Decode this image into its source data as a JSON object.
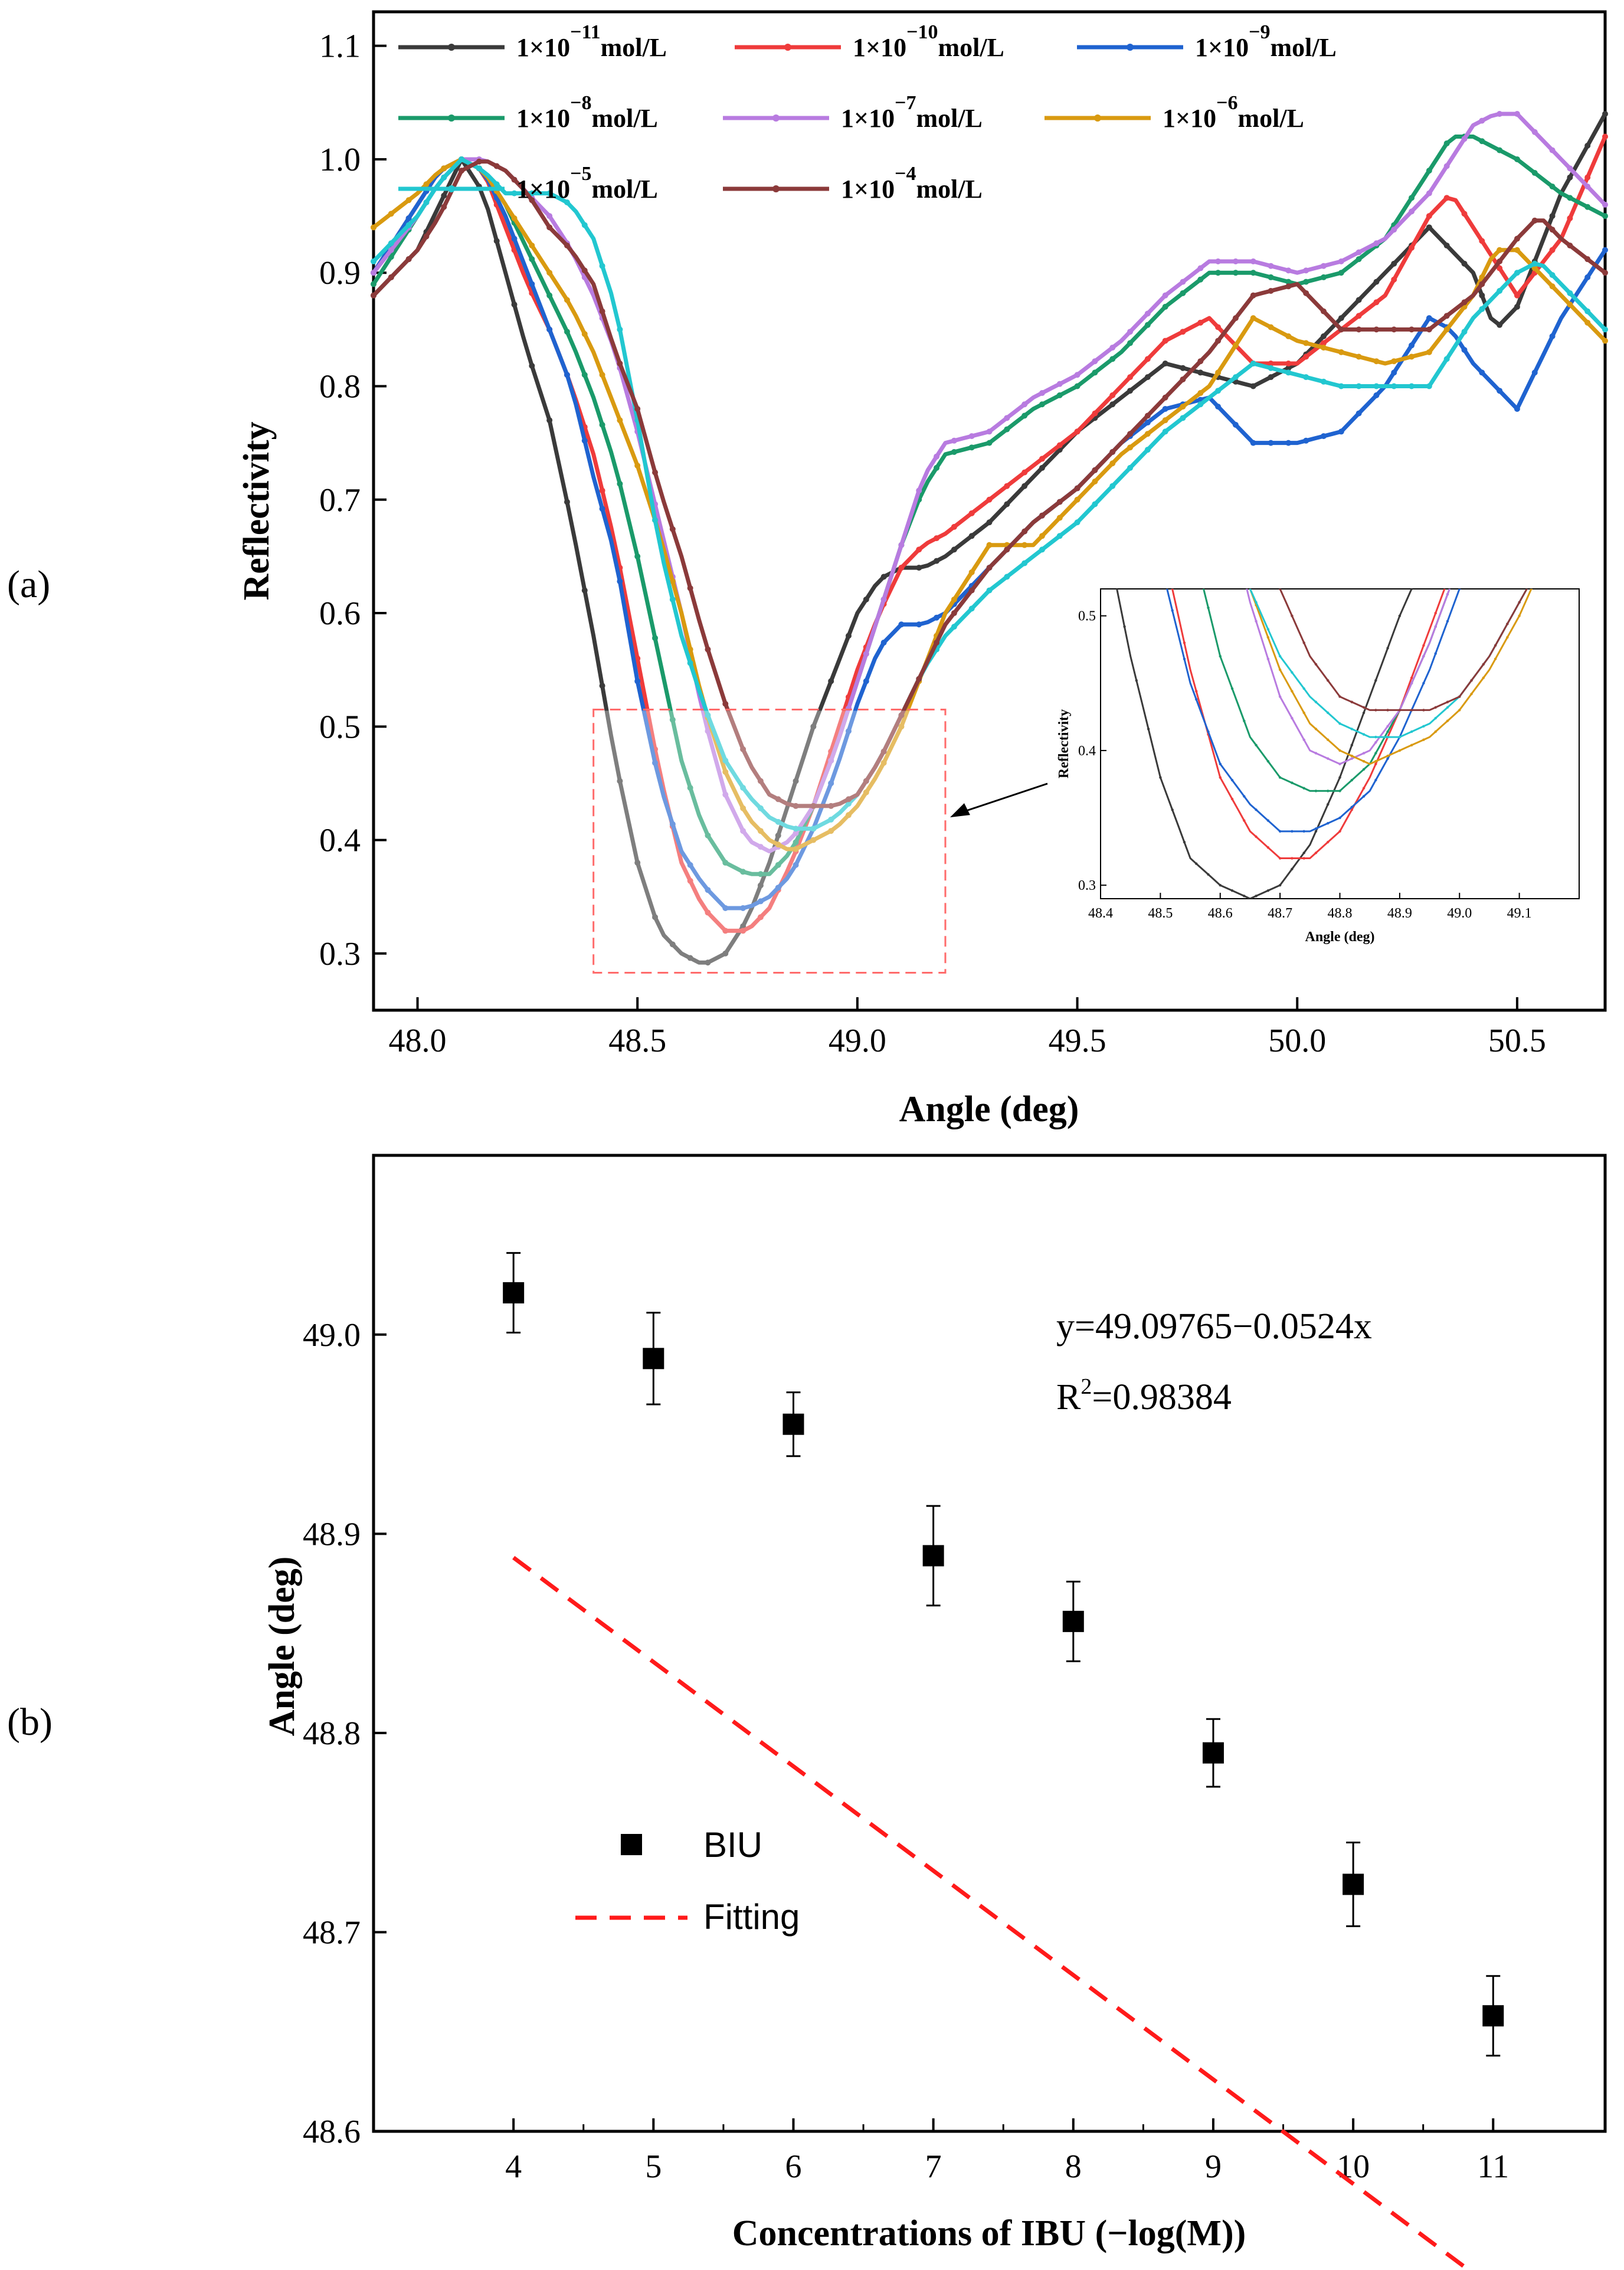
{
  "panel_a_label": "(a)",
  "panel_b_label": "(b)",
  "colors": {
    "c1e-11": "#3a3a3a",
    "c1e-10": "#ef3b3b",
    "c1e-9": "#1f63d0",
    "c1e-8": "#1a9a6a",
    "c1e-7": "#b87be0",
    "c1e-6": "#d99a10",
    "c1e-5": "#22c7d0",
    "c1e-4": "#8b3a3a",
    "fit": "#ff1a1a",
    "box": "#ff6b6b",
    "marker": "#000000"
  },
  "chart_data": [
    {
      "type": "line",
      "title": "",
      "xlabel": "Angle (deg)",
      "ylabel": "Reflectivity",
      "xlim": [
        47.9,
        50.7
      ],
      "ylim": [
        0.25,
        1.13
      ],
      "xticks": [
        "48.0",
        "48.5",
        "49.0",
        "49.5",
        "50.0",
        "50.5"
      ],
      "yticks": [
        "0.3",
        "0.4",
        "0.5",
        "0.6",
        "0.7",
        "0.8",
        "0.9",
        "1.0",
        "1.1"
      ],
      "legend_position": "top",
      "series": [
        {
          "name": "1×10",
          "exp": "−11",
          "unit": "mol/L",
          "color_key": "c1e-11",
          "x": [
            47.9,
            48.0,
            48.05,
            48.1,
            48.15,
            48.2,
            48.25,
            48.3,
            48.35,
            48.4,
            48.45,
            48.5,
            48.55,
            48.6,
            48.65,
            48.7,
            48.75,
            48.8,
            48.85,
            48.9,
            48.95,
            49.0,
            49.05,
            49.1,
            49.15,
            49.2,
            49.3,
            49.4,
            49.5,
            49.6,
            49.7,
            49.8,
            49.9,
            50.0,
            50.1,
            50.2,
            50.3,
            50.4,
            50.45,
            50.5,
            50.6,
            50.7
          ],
          "y": [
            0.88,
            0.92,
            0.96,
            1.0,
            0.97,
            0.9,
            0.83,
            0.77,
            0.68,
            0.58,
            0.47,
            0.38,
            0.32,
            0.3,
            0.29,
            0.3,
            0.33,
            0.38,
            0.44,
            0.5,
            0.55,
            0.6,
            0.63,
            0.64,
            0.64,
            0.65,
            0.68,
            0.72,
            0.76,
            0.79,
            0.82,
            0.81,
            0.8,
            0.82,
            0.86,
            0.9,
            0.94,
            0.9,
            0.85,
            0.87,
            0.97,
            1.04
          ]
        },
        {
          "name": "1×10",
          "exp": "−10",
          "unit": "mol/L",
          "color_key": "c1e-10",
          "x": [
            47.9,
            48.0,
            48.05,
            48.1,
            48.15,
            48.2,
            48.25,
            48.3,
            48.35,
            48.4,
            48.45,
            48.5,
            48.55,
            48.6,
            48.65,
            48.7,
            48.75,
            48.8,
            48.85,
            48.9,
            48.95,
            49.0,
            49.05,
            49.1,
            49.15,
            49.2,
            49.3,
            49.4,
            49.5,
            49.6,
            49.7,
            49.8,
            49.9,
            50.0,
            50.1,
            50.2,
            50.3,
            50.35,
            50.4,
            50.5,
            50.6,
            50.7
          ],
          "y": [
            0.9,
            0.96,
            0.99,
            1.0,
            0.99,
            0.94,
            0.89,
            0.85,
            0.8,
            0.74,
            0.66,
            0.56,
            0.46,
            0.38,
            0.34,
            0.32,
            0.32,
            0.34,
            0.38,
            0.43,
            0.49,
            0.55,
            0.6,
            0.64,
            0.66,
            0.67,
            0.7,
            0.73,
            0.76,
            0.8,
            0.84,
            0.86,
            0.82,
            0.82,
            0.85,
            0.88,
            0.95,
            0.97,
            0.94,
            0.88,
            0.93,
            1.02
          ]
        },
        {
          "name": "1×10",
          "exp": "−9",
          "unit": "mol/L",
          "color_key": "c1e-9",
          "x": [
            47.9,
            48.0,
            48.05,
            48.1,
            48.15,
            48.2,
            48.25,
            48.3,
            48.35,
            48.4,
            48.45,
            48.5,
            48.55,
            48.6,
            48.65,
            48.7,
            48.75,
            48.8,
            48.85,
            48.9,
            48.95,
            49.0,
            49.05,
            49.1,
            49.15,
            49.2,
            49.3,
            49.4,
            49.5,
            49.6,
            49.7,
            49.8,
            49.9,
            50.0,
            50.1,
            50.2,
            50.3,
            50.35,
            50.4,
            50.5,
            50.6,
            50.7
          ],
          "y": [
            0.9,
            0.96,
            0.99,
            1.0,
            0.99,
            0.95,
            0.9,
            0.85,
            0.8,
            0.72,
            0.65,
            0.54,
            0.45,
            0.39,
            0.36,
            0.34,
            0.34,
            0.35,
            0.37,
            0.41,
            0.46,
            0.52,
            0.57,
            0.59,
            0.59,
            0.6,
            0.64,
            0.68,
            0.71,
            0.75,
            0.78,
            0.79,
            0.75,
            0.75,
            0.76,
            0.8,
            0.86,
            0.85,
            0.82,
            0.78,
            0.86,
            0.92
          ]
        },
        {
          "name": "1×10",
          "exp": "−8",
          "unit": "mol/L",
          "color_key": "c1e-8",
          "x": [
            47.9,
            48.0,
            48.05,
            48.1,
            48.15,
            48.2,
            48.25,
            48.3,
            48.35,
            48.4,
            48.45,
            48.5,
            48.55,
            48.6,
            48.65,
            48.7,
            48.75,
            48.8,
            48.85,
            48.9,
            48.95,
            49.0,
            49.05,
            49.1,
            49.15,
            49.2,
            49.3,
            49.4,
            49.5,
            49.6,
            49.7,
            49.8,
            49.9,
            50.0,
            50.1,
            50.2,
            50.3,
            50.35,
            50.4,
            50.5,
            50.6,
            50.7
          ],
          "y": [
            0.89,
            0.95,
            0.98,
            1.0,
            0.99,
            0.96,
            0.92,
            0.88,
            0.84,
            0.79,
            0.73,
            0.65,
            0.56,
            0.47,
            0.41,
            0.38,
            0.37,
            0.37,
            0.39,
            0.43,
            0.48,
            0.54,
            0.6,
            0.66,
            0.71,
            0.74,
            0.75,
            0.78,
            0.8,
            0.83,
            0.87,
            0.9,
            0.9,
            0.89,
            0.9,
            0.93,
            0.99,
            1.02,
            1.02,
            1.0,
            0.97,
            0.95
          ]
        },
        {
          "name": "1×10",
          "exp": "−7",
          "unit": "mol/L",
          "color_key": "c1e-7",
          "x": [
            47.9,
            48.0,
            48.05,
            48.1,
            48.15,
            48.2,
            48.25,
            48.3,
            48.35,
            48.4,
            48.45,
            48.5,
            48.55,
            48.6,
            48.65,
            48.7,
            48.75,
            48.8,
            48.85,
            48.9,
            48.95,
            49.0,
            49.05,
            49.1,
            49.15,
            49.2,
            49.3,
            49.4,
            49.5,
            49.6,
            49.7,
            49.8,
            49.9,
            50.0,
            50.1,
            50.2,
            50.3,
            50.4,
            50.45,
            50.5,
            50.6,
            50.7
          ],
          "y": [
            0.9,
            0.95,
            0.98,
            1.0,
            1.0,
            0.99,
            0.97,
            0.95,
            0.92,
            0.88,
            0.83,
            0.76,
            0.68,
            0.6,
            0.51,
            0.44,
            0.4,
            0.39,
            0.4,
            0.43,
            0.48,
            0.54,
            0.6,
            0.66,
            0.72,
            0.75,
            0.76,
            0.79,
            0.81,
            0.84,
            0.88,
            0.91,
            0.91,
            0.9,
            0.91,
            0.93,
            0.97,
            1.03,
            1.04,
            1.04,
            1.0,
            0.96
          ]
        },
        {
          "name": "1×10",
          "exp": "−6",
          "unit": "mol/L",
          "color_key": "c1e-6",
          "x": [
            47.9,
            48.0,
            48.05,
            48.1,
            48.15,
            48.2,
            48.25,
            48.3,
            48.35,
            48.4,
            48.45,
            48.5,
            48.55,
            48.6,
            48.65,
            48.7,
            48.75,
            48.8,
            48.85,
            48.9,
            48.95,
            49.0,
            49.05,
            49.1,
            49.15,
            49.2,
            49.3,
            49.4,
            49.5,
            49.6,
            49.7,
            49.8,
            49.9,
            50.0,
            50.1,
            50.2,
            50.3,
            50.4,
            50.45,
            50.5,
            50.6,
            50.7
          ],
          "y": [
            0.94,
            0.97,
            0.99,
            1.0,
            0.99,
            0.96,
            0.93,
            0.9,
            0.87,
            0.83,
            0.78,
            0.73,
            0.67,
            0.6,
            0.52,
            0.46,
            0.42,
            0.4,
            0.39,
            0.4,
            0.41,
            0.43,
            0.46,
            0.5,
            0.55,
            0.6,
            0.66,
            0.66,
            0.7,
            0.74,
            0.77,
            0.8,
            0.86,
            0.84,
            0.83,
            0.82,
            0.83,
            0.88,
            0.92,
            0.92,
            0.88,
            0.84
          ]
        },
        {
          "name": "1×10",
          "exp": "−5",
          "unit": "mol/L",
          "color_key": "c1e-5",
          "x": [
            47.9,
            48.0,
            48.05,
            48.1,
            48.15,
            48.2,
            48.25,
            48.3,
            48.35,
            48.4,
            48.45,
            48.5,
            48.55,
            48.6,
            48.65,
            48.7,
            48.75,
            48.8,
            48.85,
            48.9,
            48.95,
            49.0,
            49.05,
            49.1,
            49.15,
            49.2,
            49.3,
            49.4,
            49.5,
            49.6,
            49.7,
            49.8,
            49.9,
            50.0,
            50.1,
            50.2,
            50.3,
            50.4,
            50.5,
            50.55,
            50.6,
            50.7
          ],
          "y": [
            0.91,
            0.95,
            0.98,
            1.0,
            0.99,
            0.97,
            0.97,
            0.97,
            0.96,
            0.93,
            0.87,
            0.77,
            0.66,
            0.58,
            0.52,
            0.47,
            0.44,
            0.42,
            0.41,
            0.41,
            0.42,
            0.44,
            0.47,
            0.51,
            0.55,
            0.58,
            0.62,
            0.65,
            0.68,
            0.72,
            0.76,
            0.79,
            0.82,
            0.81,
            0.8,
            0.8,
            0.8,
            0.86,
            0.9,
            0.91,
            0.89,
            0.85
          ]
        },
        {
          "name": "1×10",
          "exp": "−4",
          "unit": "mol/L",
          "color_key": "c1e-4",
          "x": [
            47.9,
            48.0,
            48.05,
            48.1,
            48.15,
            48.2,
            48.25,
            48.3,
            48.35,
            48.4,
            48.45,
            48.5,
            48.55,
            48.6,
            48.65,
            48.7,
            48.75,
            48.8,
            48.85,
            48.9,
            48.95,
            49.0,
            49.05,
            49.1,
            49.15,
            49.2,
            49.3,
            49.4,
            49.5,
            49.6,
            49.7,
            49.8,
            49.9,
            50.0,
            50.1,
            50.2,
            50.3,
            50.4,
            50.5,
            50.55,
            50.6,
            50.7
          ],
          "y": [
            0.88,
            0.92,
            0.95,
            0.99,
            1.0,
            0.99,
            0.97,
            0.94,
            0.92,
            0.89,
            0.83,
            0.78,
            0.71,
            0.65,
            0.58,
            0.52,
            0.47,
            0.44,
            0.43,
            0.43,
            0.43,
            0.44,
            0.47,
            0.51,
            0.55,
            0.59,
            0.64,
            0.68,
            0.71,
            0.75,
            0.79,
            0.83,
            0.88,
            0.89,
            0.85,
            0.85,
            0.85,
            0.88,
            0.93,
            0.95,
            0.93,
            0.9
          ]
        }
      ],
      "inset": {
        "xlabel": "Angle (deg)",
        "ylabel": "Reflectivity",
        "xlim": [
          48.4,
          49.2
        ],
        "ylim": [
          0.29,
          0.52
        ],
        "xticks": [
          "48.4",
          "48.5",
          "48.6",
          "48.7",
          "48.8",
          "48.9",
          "49.0",
          "49.1"
        ],
        "yticks": [
          "0.3",
          "0.4",
          "0.5"
        ]
      },
      "zoom_box": {
        "x": [
          48.4,
          49.2
        ],
        "y": [
          0.283,
          0.515
        ]
      }
    },
    {
      "type": "scatter",
      "title": "",
      "xlabel": "Concentrations of IBU (−log(M))",
      "ylabel": "Angle  (deg)",
      "xlim": [
        3.0,
        11.8
      ],
      "ylim": [
        48.6,
        49.09
      ],
      "xticks": [
        "4",
        "5",
        "6",
        "7",
        "8",
        "9",
        "10",
        "11"
      ],
      "yticks": [
        "48.6",
        "48.7",
        "48.8",
        "48.9",
        "49.0"
      ],
      "series": [
        {
          "name": "BIU",
          "x": [
            4,
            5,
            6,
            7,
            8,
            9,
            10,
            11
          ],
          "y": [
            49.021,
            48.988,
            48.955,
            48.889,
            48.856,
            48.79,
            48.724,
            48.658
          ],
          "err": [
            0.02,
            0.023,
            0.016,
            0.025,
            0.02,
            0.017,
            0.021,
            0.02
          ]
        },
        {
          "name": "Fitting",
          "slope": -0.0524,
          "intercept": 49.09765,
          "x_range": [
            4,
            11
          ]
        }
      ],
      "equation": "y=49.09765−0.0524x",
      "r2_prefix": "R",
      "r2_sup": "2",
      "r2_value": "=0.98384",
      "legend_position": "bottom-left"
    }
  ]
}
